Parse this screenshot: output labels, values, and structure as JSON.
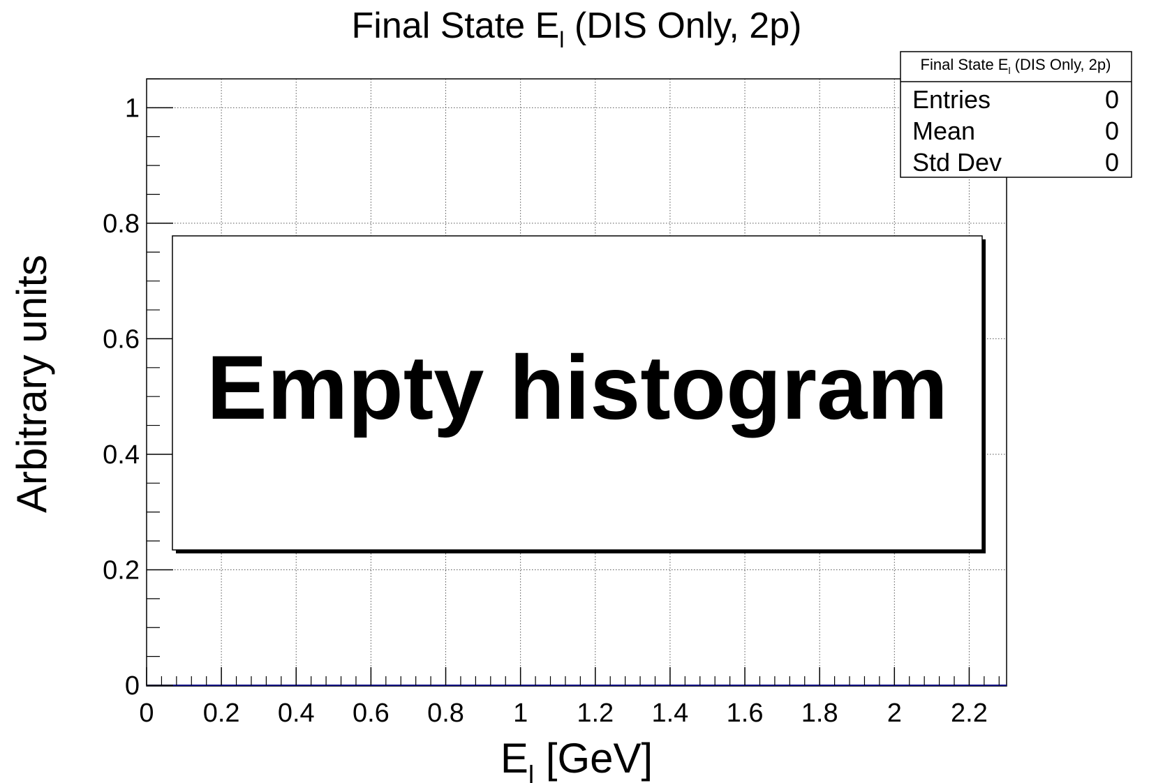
{
  "chart_data": {
    "type": "bar",
    "title": {
      "main": "Final State E",
      "sub": "l",
      "rest": " (DIS Only, 2p)"
    },
    "xlabel": {
      "main": "E",
      "sub": "l",
      "rest": " [GeV]"
    },
    "ylabel": "Arbitrary units",
    "xlim": [
      0,
      2.3
    ],
    "ylim": [
      0,
      1.05
    ],
    "x_ticks": [
      0,
      0.2,
      0.4,
      0.6,
      0.8,
      1,
      1.2,
      1.4,
      1.6,
      1.8,
      2,
      2.2
    ],
    "x_tick_labels": [
      "0",
      "0.2",
      "0.4",
      "0.6",
      "0.8",
      "1",
      "1.2",
      "1.4",
      "1.6",
      "1.8",
      "2",
      "2.2"
    ],
    "y_ticks": [
      0,
      0.2,
      0.4,
      0.6,
      0.8,
      1
    ],
    "y_tick_labels": [
      "0",
      "0.2",
      "0.4",
      "0.6",
      "0.8",
      "1"
    ],
    "grid": true,
    "series": [
      {
        "values": []
      }
    ],
    "stats_box": {
      "title": {
        "main": "Final State E",
        "sub": "l",
        "rest": " (DIS Only, 2p)"
      },
      "rows": [
        {
          "label": "Entries",
          "value": "0"
        },
        {
          "label": "Mean",
          "value": "0"
        },
        {
          "label": "Std Dev",
          "value": "0"
        }
      ],
      "placement": "top-right"
    },
    "annotation": "Empty histogram",
    "colors": {
      "frame": "#000000",
      "grid": "#555555",
      "histogram_line": "#000080"
    }
  }
}
